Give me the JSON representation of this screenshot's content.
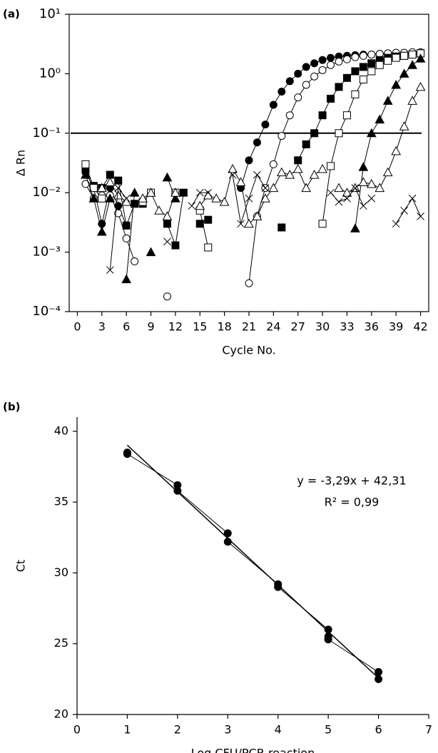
{
  "chart_data": [
    {
      "type": "line",
      "panel_label": "(a)",
      "xlabel": "Cycle No.",
      "ylabel": "Δ Rn",
      "log_y": true,
      "xlim": [
        -1,
        43
      ],
      "ylim": [
        0.0001,
        10
      ],
      "xticks": [
        0,
        3,
        6,
        9,
        12,
        15,
        18,
        21,
        24,
        27,
        30,
        33,
        36,
        39,
        42
      ],
      "yticks": [
        {
          "value": 0.0001,
          "label": "10⁻⁴"
        },
        {
          "value": 0.001,
          "label": "10⁻³"
        },
        {
          "value": 0.01,
          "label": "10⁻²"
        },
        {
          "value": 0.1,
          "label": "10⁻¹"
        },
        {
          "value": 1,
          "label": "10⁰"
        },
        {
          "value": 10,
          "label": "10¹"
        }
      ],
      "threshold": 0.1,
      "x": [
        1,
        2,
        3,
        4,
        5,
        6,
        7,
        8,
        9,
        10,
        11,
        12,
        13,
        14,
        15,
        16,
        17,
        18,
        19,
        20,
        21,
        22,
        23,
        24,
        25,
        26,
        27,
        28,
        29,
        30,
        31,
        32,
        33,
        34,
        35,
        36,
        37,
        38,
        39,
        40,
        41,
        42
      ],
      "series": [
        {
          "color": "#000000",
          "marker": "circle-filled",
          "values": [
            0.022,
            0.012,
            0.003,
            0.012,
            0.006,
            0.0028,
            null,
            null,
            null,
            null,
            null,
            null,
            null,
            null,
            null,
            null,
            null,
            null,
            null,
            0.012,
            0.035,
            0.07,
            0.14,
            0.3,
            0.5,
            0.75,
            1.0,
            1.3,
            1.5,
            1.7,
            1.85,
            1.95,
            2.0,
            2.05,
            2.1,
            2.1,
            2.15,
            2.2,
            2.2,
            2.2,
            2.2,
            2.2
          ]
        },
        {
          "color": "#000000",
          "marker": "circle-open",
          "values": [
            0.014,
            0.008,
            0.009,
            0.009,
            0.0045,
            0.0017,
            0.0007,
            null,
            null,
            null,
            0.00018,
            null,
            null,
            null,
            null,
            null,
            null,
            null,
            null,
            null,
            0.0003,
            0.004,
            0.012,
            0.03,
            0.09,
            0.2,
            0.4,
            0.65,
            0.9,
            1.15,
            1.4,
            1.6,
            1.75,
            1.9,
            2.0,
            2.1,
            2.15,
            2.2,
            2.25,
            2.25,
            2.3,
            2.3
          ]
        },
        {
          "color": "#000000",
          "marker": "square-filled",
          "values": [
            0.025,
            0.013,
            0.012,
            0.02,
            0.016,
            0.0028,
            0.0065,
            0.0065,
            null,
            null,
            0.003,
            0.0013,
            0.01,
            null,
            0.003,
            0.0035,
            null,
            null,
            null,
            null,
            null,
            null,
            null,
            null,
            0.0026,
            null,
            0.035,
            0.065,
            0.1,
            0.2,
            0.38,
            0.6,
            0.85,
            1.1,
            1.3,
            1.5,
            1.7,
            1.85,
            1.95,
            2.0,
            2.1,
            2.2
          ]
        },
        {
          "color": "#000000",
          "marker": "square-open",
          "values": [
            0.03,
            0.012,
            0.008,
            null,
            null,
            null,
            null,
            0.007,
            0.01,
            null,
            null,
            0.01,
            null,
            null,
            0.005,
            0.0012,
            null,
            null,
            null,
            null,
            null,
            null,
            null,
            null,
            null,
            null,
            null,
            null,
            null,
            0.003,
            0.028,
            0.1,
            0.2,
            0.45,
            0.8,
            1.1,
            1.4,
            1.65,
            1.85,
            2.0,
            2.1,
            2.2
          ]
        },
        {
          "color": "#000000",
          "marker": "triangle-filled",
          "values": [
            0.02,
            0.008,
            0.0022,
            0.008,
            null,
            0.00035,
            0.01,
            null,
            0.001,
            null,
            0.018,
            0.008,
            null,
            null,
            null,
            null,
            null,
            null,
            null,
            null,
            null,
            null,
            null,
            null,
            null,
            null,
            null,
            null,
            null,
            null,
            null,
            null,
            null,
            0.0025,
            0.027,
            0.1,
            0.17,
            0.35,
            0.65,
            1.0,
            1.4,
            1.8
          ]
        },
        {
          "color": "#000000",
          "marker": "triangle-open",
          "values": [
            null,
            null,
            0.012,
            0.015,
            0.009,
            0.007,
            null,
            0.008,
            0.01,
            0.005,
            0.004,
            0.01,
            null,
            null,
            0.006,
            0.009,
            0.008,
            0.007,
            0.025,
            0.015,
            0.003,
            0.004,
            0.008,
            0.012,
            0.022,
            0.02,
            0.025,
            0.012,
            0.02,
            0.025,
            null,
            0.012,
            0.01,
            0.012,
            0.015,
            0.014,
            0.012,
            0.022,
            0.05,
            0.13,
            0.35,
            0.6
          ]
        },
        {
          "color": "#000000",
          "marker": "cross",
          "values": [
            null,
            null,
            null,
            0.0005,
            0.012,
            0.008,
            null,
            null,
            null,
            null,
            0.0015,
            null,
            null,
            0.006,
            0.01,
            0.01,
            null,
            null,
            0.02,
            0.003,
            0.008,
            0.02,
            0.012,
            null,
            null,
            null,
            null,
            null,
            null,
            null,
            0.01,
            0.007,
            0.008,
            0.012,
            0.006,
            0.008,
            null,
            null,
            0.003,
            0.005,
            0.008,
            0.004
          ]
        }
      ]
    },
    {
      "type": "scatter",
      "panel_label": "(b)",
      "xlabel": "Log CFU/PCR reaction",
      "ylabel": "Ct",
      "xlim": [
        0,
        7
      ],
      "ylim": [
        20,
        41
      ],
      "xticks": [
        0,
        1,
        2,
        3,
        4,
        5,
        6,
        7
      ],
      "yticks": [
        20,
        25,
        30,
        35,
        40
      ],
      "series": [
        {
          "color": "#000000",
          "marker": "circle-filled",
          "x": [
            1,
            1,
            2,
            2,
            3,
            3,
            4,
            4,
            5,
            5,
            5,
            6,
            6
          ],
          "values": [
            38.5,
            38.4,
            36.2,
            35.8,
            32.8,
            32.2,
            29.2,
            29.0,
            26.0,
            25.5,
            25.3,
            23.0,
            22.5
          ]
        },
        {
          "color": "#000000",
          "marker": "none",
          "x": [
            1,
            6
          ],
          "values": [
            39.02,
            22.57
          ]
        }
      ],
      "annotations": [
        "y = -3,29x + 42,31",
        "R² = 0,99"
      ]
    }
  ]
}
